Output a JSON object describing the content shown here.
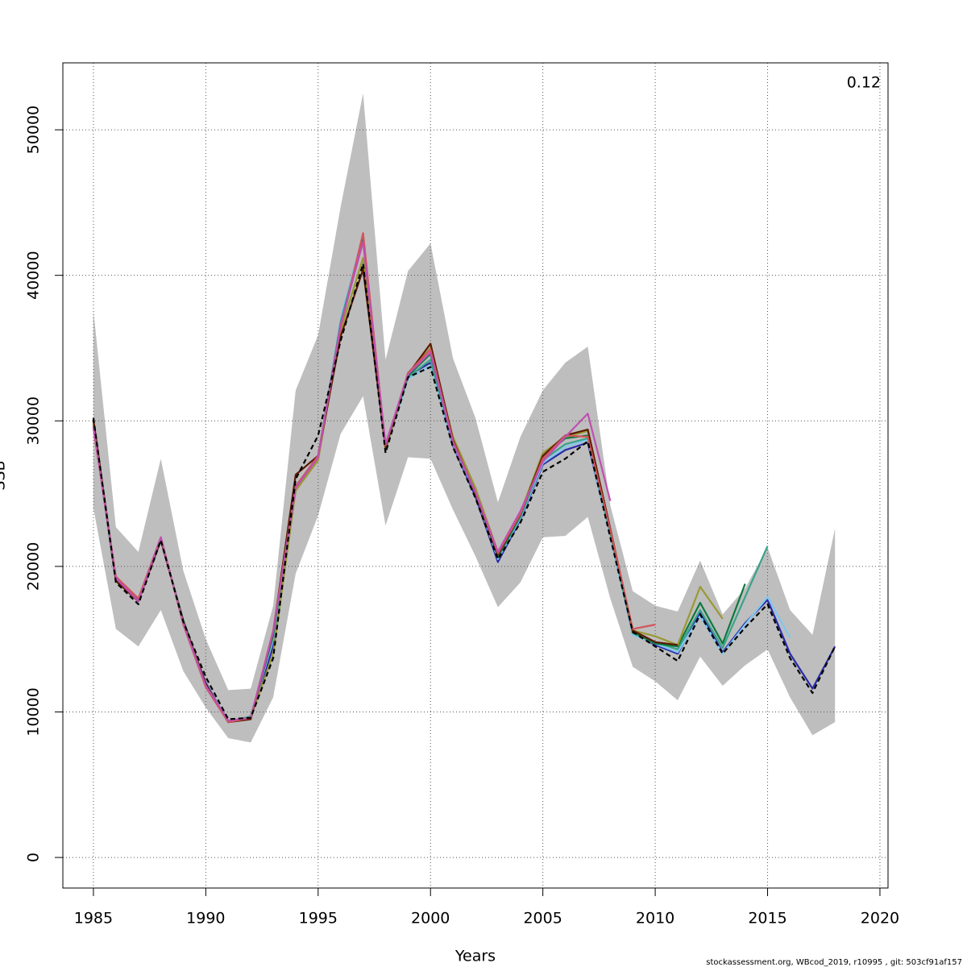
{
  "chart_data": {
    "type": "line",
    "x_label": "Years",
    "y_label": "SSB",
    "annotation": "0.12",
    "footer": "stockassessment.org, WBcod_2019, r10995 , git: 503cf91af157",
    "grid": true,
    "xlim": [
      1983.64,
      2020.36
    ],
    "xticks": [
      1985,
      1990,
      1995,
      2000,
      2005,
      2010,
      2015,
      2020
    ],
    "ylim": [
      -2100,
      54600
    ],
    "yticks": [
      0,
      10000,
      20000,
      30000,
      40000,
      50000
    ],
    "x": [
      1985,
      1986,
      1987,
      1988,
      1989,
      1990,
      1991,
      1992,
      1993,
      1994,
      1995,
      1996,
      1997,
      1998,
      1999,
      2000,
      2001,
      2002,
      2003,
      2004,
      2005,
      2006,
      2007,
      2008,
      2009,
      2010,
      2011,
      2012,
      2013,
      2014,
      2015,
      2016,
      2017,
      2018
    ],
    "band": {
      "color": "#bebebe",
      "upper": [
        37600,
        22700,
        21000,
        27400,
        19700,
        15000,
        11500,
        11600,
        17300,
        32100,
        35900,
        44700,
        52500,
        34200,
        40300,
        42200,
        34300,
        30200,
        24400,
        28900,
        32100,
        34000,
        35100,
        24200,
        18300,
        17300,
        16900,
        20400,
        16700,
        18500,
        21300,
        17000,
        15300,
        22600
      ],
      "lower": [
        24000,
        15700,
        14500,
        17000,
        12800,
        10300,
        8200,
        7900,
        11000,
        19500,
        23500,
        29100,
        31700,
        22800,
        27500,
        27400,
        23900,
        20700,
        17200,
        18900,
        22000,
        22100,
        23400,
        17800,
        13100,
        12100,
        10800,
        13800,
        11800,
        13200,
        14300,
        11000,
        8400,
        9300
      ]
    },
    "series": [
      {
        "color": "#2a2aa8",
        "dashed": false,
        "values": [
          30000,
          19100,
          17600,
          21900,
          16100,
          12000,
          9300,
          9600,
          14500,
          25500,
          27500,
          36500,
          42500,
          28000,
          33100,
          34000,
          28300,
          24800,
          20300,
          23200,
          27000,
          28000,
          28500,
          22100,
          15400,
          14600,
          14000,
          16800,
          14100,
          16100,
          17700,
          14000,
          11600,
          14500
        ]
      },
      {
        "color": "#7fc8f0",
        "dashed": false,
        "values": [
          29800,
          19200,
          17700,
          22000,
          16000,
          11900,
          9400,
          9600,
          15000,
          25300,
          27400,
          37000,
          42800,
          28100,
          32900,
          33800,
          28400,
          25000,
          20500,
          23300,
          27100,
          28200,
          28700,
          22000,
          15300,
          14700,
          14100,
          16600,
          14000,
          16000,
          17900,
          15100,
          null,
          null
        ]
      },
      {
        "color": "#3aa38a",
        "dashed": false,
        "values": [
          29900,
          19100,
          17600,
          21900,
          16200,
          11800,
          9300,
          9700,
          15200,
          25400,
          27500,
          36800,
          42600,
          28200,
          33000,
          34200,
          28500,
          25100,
          20600,
          23400,
          27300,
          28400,
          28800,
          22300,
          15400,
          14800,
          14300,
          17000,
          14400,
          17900,
          21400,
          null,
          null,
          null
        ]
      },
      {
        "color": "#0b7a3e",
        "dashed": false,
        "values": [
          29700,
          19000,
          17700,
          21800,
          16300,
          11900,
          9300,
          9600,
          15300,
          25500,
          27600,
          36600,
          42400,
          28300,
          33100,
          34600,
          28600,
          25200,
          20700,
          23500,
          27500,
          28800,
          29000,
          22400,
          15500,
          14700,
          14500,
          17500,
          14700,
          18800,
          null,
          null,
          null,
          null
        ]
      },
      {
        "color": "#999933",
        "dashed": false,
        "values": [
          29800,
          19200,
          17800,
          21900,
          16100,
          11800,
          9400,
          9600,
          14000,
          25200,
          27300,
          36200,
          41200,
          28000,
          33300,
          35000,
          28900,
          25400,
          21000,
          23700,
          27800,
          28900,
          29300,
          22500,
          15600,
          15200,
          14600,
          18600,
          16400,
          null,
          null,
          null,
          null,
          null
        ]
      },
      {
        "color": "#5c1a00",
        "dashed": false,
        "values": [
          30100,
          19000,
          17600,
          21800,
          16200,
          11900,
          9300,
          9500,
          15500,
          26300,
          27600,
          35800,
          40400,
          28200,
          33200,
          35300,
          28700,
          25000,
          20800,
          23600,
          27600,
          29000,
          29400,
          22600,
          15600,
          14800,
          14600,
          null,
          null,
          null,
          null,
          null,
          null,
          null
        ]
      },
      {
        "color": "#d4545b",
        "dashed": false,
        "values": [
          29500,
          19300,
          17800,
          22000,
          16000,
          11700,
          9300,
          9600,
          15600,
          25500,
          27600,
          36400,
          42900,
          28300,
          33300,
          34900,
          28600,
          25100,
          20900,
          23600,
          27400,
          29000,
          28900,
          22500,
          15700,
          16000,
          null,
          null,
          null,
          null,
          null,
          null,
          null,
          null
        ]
      },
      {
        "color": "#c04fb0",
        "dashed": false,
        "values": [
          29600,
          19200,
          17600,
          22000,
          16100,
          11800,
          9400,
          9600,
          15500,
          25400,
          27500,
          36600,
          42300,
          28400,
          33200,
          34700,
          28500,
          25100,
          21000,
          23800,
          27200,
          28900,
          30500,
          24500,
          null,
          null,
          null,
          null,
          null,
          null,
          null,
          null,
          null,
          null
        ]
      },
      {
        "color": "#000000",
        "dashed": true,
        "values": [
          30200,
          18900,
          17400,
          21800,
          16200,
          12400,
          9500,
          9600,
          13700,
          26000,
          29000,
          35500,
          40800,
          27800,
          33000,
          33700,
          28200,
          24700,
          20500,
          23000,
          26500,
          27400,
          28600,
          22000,
          15500,
          14500,
          13500,
          16700,
          14000,
          15800,
          17400,
          13700,
          11300,
          14500
        ]
      }
    ]
  }
}
